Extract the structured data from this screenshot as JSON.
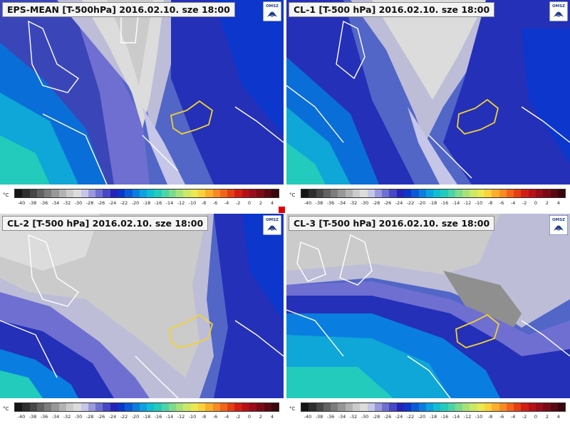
{
  "panels": [
    {
      "id": "eps-mean",
      "title": "EPS-MEAN [T-500hPa] 2016.02.10. sze 18:00",
      "logo_text": "OMSZ"
    },
    {
      "id": "cl-1",
      "title": "CL-1 [T-500 hPa] 2016.02.10. sze 18:00",
      "logo_text": "OMSZ"
    },
    {
      "id": "cl-2",
      "title": "CL-2 [T-500 hPa] 2016.02.10. sze 18:00",
      "logo_text": "OMSZ"
    },
    {
      "id": "cl-3",
      "title": "CL-3 [T-500 hPa] 2016.02.10. sze 18:00",
      "logo_text": "OMSZ"
    }
  ],
  "legend": {
    "unit": "°C",
    "ticks": [
      "-40",
      "-38",
      "-36",
      "-34",
      "-32",
      "-30",
      "-28",
      "-26",
      "-24",
      "-22",
      "-20",
      "-18",
      "-16",
      "-14",
      "-12",
      "-10",
      "-8",
      "-6",
      "-4",
      "-2",
      "0",
      "2",
      "4"
    ],
    "colors": [
      "#151515",
      "#2e2e2e",
      "#474747",
      "#626262",
      "#7c7c7c",
      "#979797",
      "#b2b2b2",
      "#cbcbcb",
      "#dcdcdc",
      "#c6c6e8",
      "#9999dd",
      "#6f6fd2",
      "#4747c8",
      "#2424b8",
      "#0c36cc",
      "#0a5ad8",
      "#0a7ee0",
      "#0aa2e0",
      "#0fbed2",
      "#22cbbb",
      "#4dd3a6",
      "#7cdb8e",
      "#a6e27a",
      "#cbe866",
      "#ece84f",
      "#fbd23a",
      "#fbaf2b",
      "#f88a21",
      "#f26519",
      "#e63f13",
      "#d31e14",
      "#b81018",
      "#9a0c1a",
      "#7a0a16",
      "#5a0812",
      "#3a050c"
    ]
  },
  "colors": {
    "hungary_outline": "#f2d230",
    "coastline": "#ffffff",
    "marker": "#e00000"
  }
}
